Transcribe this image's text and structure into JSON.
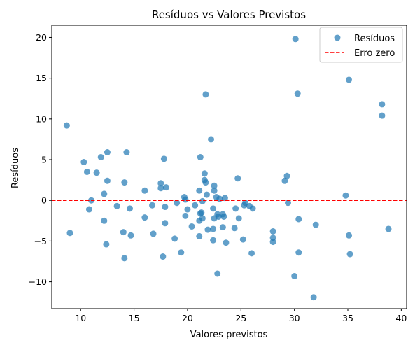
{
  "chart_data": {
    "type": "scatter",
    "title": "Resíduos vs Valores Previstos",
    "xlabel": "Valores previstos",
    "ylabel": "Resíduos",
    "xlim": [
      7.3,
      40.5
    ],
    "ylim": [
      -13.3,
      21.5
    ],
    "xticks": [
      10,
      15,
      20,
      25,
      30,
      35,
      40
    ],
    "yticks": [
      -10,
      -5,
      0,
      5,
      10,
      15,
      20
    ],
    "xtick_labels": [
      "10",
      "15",
      "20",
      "25",
      "30",
      "35",
      "40"
    ],
    "ytick_labels": [
      "−10",
      "−5",
      "0",
      "5",
      "10",
      "15",
      "20"
    ],
    "grid": false,
    "legend_position": "top-right",
    "reference_line": {
      "y": 0,
      "label": "Erro zero",
      "color": "#ff0000",
      "style": "dashed"
    },
    "series": [
      {
        "name": "Resíduos",
        "color": "#1f77b4",
        "points": [
          [
            8.7,
            9.2
          ],
          [
            9.0,
            -4.0
          ],
          [
            10.3,
            4.7
          ],
          [
            10.6,
            3.5
          ],
          [
            10.8,
            -1.1
          ],
          [
            11.0,
            0.0
          ],
          [
            11.5,
            3.4
          ],
          [
            11.9,
            5.3
          ],
          [
            12.2,
            0.8
          ],
          [
            12.2,
            -2.5
          ],
          [
            12.5,
            5.9
          ],
          [
            12.5,
            2.4
          ],
          [
            12.4,
            -5.4
          ],
          [
            13.4,
            -0.7
          ],
          [
            14.0,
            -3.9
          ],
          [
            14.1,
            2.2
          ],
          [
            14.1,
            -7.1
          ],
          [
            14.3,
            5.9
          ],
          [
            14.6,
            -1.0
          ],
          [
            14.7,
            -4.3
          ],
          [
            16.0,
            1.2
          ],
          [
            16.0,
            -2.1
          ],
          [
            16.7,
            -0.6
          ],
          [
            16.8,
            -4.1
          ],
          [
            17.5,
            2.1
          ],
          [
            17.5,
            1.5
          ],
          [
            17.7,
            -6.9
          ],
          [
            17.8,
            5.1
          ],
          [
            17.9,
            -0.8
          ],
          [
            17.9,
            -2.8
          ],
          [
            18.0,
            1.6
          ],
          [
            18.8,
            -4.7
          ],
          [
            19.0,
            -0.3
          ],
          [
            19.4,
            -6.4
          ],
          [
            19.7,
            0.4
          ],
          [
            19.8,
            -1.9
          ],
          [
            19.8,
            0.1
          ],
          [
            20.0,
            -1.1
          ],
          [
            20.4,
            -3.2
          ],
          [
            20.7,
            -0.6
          ],
          [
            21.1,
            1.2
          ],
          [
            21.1,
            -2.5
          ],
          [
            21.1,
            -4.4
          ],
          [
            21.2,
            5.3
          ],
          [
            21.2,
            -1.6
          ],
          [
            21.3,
            -1.5
          ],
          [
            21.4,
            -0.1
          ],
          [
            21.4,
            -2.2
          ],
          [
            21.6,
            2.5
          ],
          [
            21.6,
            3.3
          ],
          [
            21.7,
            2.2
          ],
          [
            21.7,
            13.0
          ],
          [
            21.8,
            0.7
          ],
          [
            21.9,
            -3.6
          ],
          [
            22.2,
            7.5
          ],
          [
            22.4,
            -4.9
          ],
          [
            22.4,
            -3.5
          ],
          [
            22.4,
            -1.0
          ],
          [
            22.5,
            -2.2
          ],
          [
            22.5,
            1.8
          ],
          [
            22.5,
            1.2
          ],
          [
            22.7,
            0.4
          ],
          [
            22.8,
            -9.0
          ],
          [
            22.8,
            -1.7
          ],
          [
            22.9,
            -2.0
          ],
          [
            23.0,
            0.2
          ],
          [
            23.3,
            -3.3
          ],
          [
            23.3,
            -1.7
          ],
          [
            23.4,
            -2.0
          ],
          [
            23.5,
            0.3
          ],
          [
            23.6,
            -5.2
          ],
          [
            24.4,
            -3.4
          ],
          [
            24.5,
            -1.0
          ],
          [
            24.7,
            2.7
          ],
          [
            24.8,
            -2.2
          ],
          [
            25.2,
            -4.8
          ],
          [
            25.3,
            -0.6
          ],
          [
            25.4,
            -0.3
          ],
          [
            25.8,
            -0.7
          ],
          [
            26.0,
            -6.5
          ],
          [
            26.1,
            -1.0
          ],
          [
            28.0,
            -3.8
          ],
          [
            28.0,
            -4.6
          ],
          [
            28.0,
            -5.1
          ],
          [
            29.1,
            2.4
          ],
          [
            29.3,
            3.0
          ],
          [
            29.4,
            -0.3
          ],
          [
            30.0,
            -9.3
          ],
          [
            30.1,
            19.8
          ],
          [
            30.3,
            13.1
          ],
          [
            30.4,
            -6.4
          ],
          [
            30.4,
            -2.3
          ],
          [
            31.8,
            -11.9
          ],
          [
            32.0,
            -3.0
          ],
          [
            34.8,
            0.6
          ],
          [
            35.1,
            14.8
          ],
          [
            35.1,
            -4.3
          ],
          [
            35.2,
            -6.6
          ],
          [
            38.2,
            11.8
          ],
          [
            38.2,
            10.4
          ],
          [
            38.8,
            -3.5
          ]
        ]
      }
    ]
  },
  "legend": {
    "items": [
      {
        "label": "Resíduos",
        "symbol": "dot",
        "color": "#1f77b4"
      },
      {
        "label": "Erro zero",
        "symbol": "dashed-line",
        "color": "#ff0000"
      }
    ]
  }
}
